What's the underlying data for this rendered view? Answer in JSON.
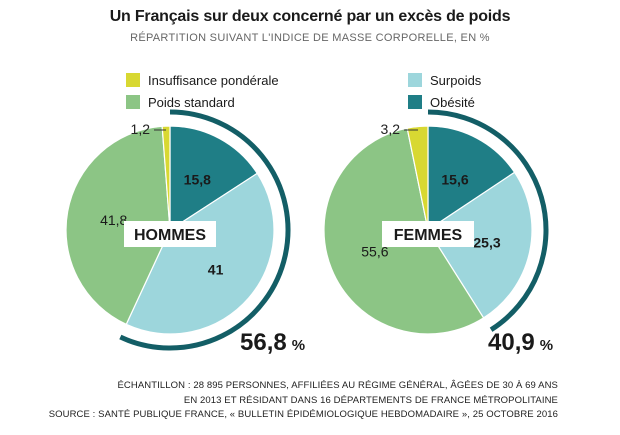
{
  "title": "Un Français sur deux concerné par un excès de poids",
  "subtitle": "RÉPARTITION SUIVANT L'INDICE DE MASSE CORPORELLE, EN %",
  "legend": [
    {
      "label": "Insuffisance pondérale",
      "color": "#d8d832"
    },
    {
      "label": "Poids standard",
      "color": "#8cc585"
    },
    {
      "label": "Surpoids",
      "color": "#9dd6dc"
    },
    {
      "label": "Obésité",
      "color": "#1f7e86"
    }
  ],
  "colors": {
    "arc": "#135e66",
    "badge_bg": "#ffffff"
  },
  "chart_data": [
    {
      "type": "pie",
      "name": "HOMMES",
      "slices": [
        {
          "category": "Obésité",
          "value": 15.8,
          "label": "15,8"
        },
        {
          "category": "Surpoids",
          "value": 41,
          "label": "41"
        },
        {
          "category": "Poids standard",
          "value": 41.8,
          "label": "41,8"
        },
        {
          "category": "Insuffisance pondérale",
          "value": 1.2,
          "label": "1,2"
        }
      ],
      "total_excess": {
        "value": 56.8,
        "label": "56,8",
        "unit": "%"
      }
    },
    {
      "type": "pie",
      "name": "FEMMES",
      "slices": [
        {
          "category": "Obésité",
          "value": 15.6,
          "label": "15,6"
        },
        {
          "category": "Surpoids",
          "value": 25.3,
          "label": "25,3"
        },
        {
          "category": "Poids standard",
          "value": 55.6,
          "label": "55,6"
        },
        {
          "category": "Insuffisance pondérale",
          "value": 3.2,
          "label": "3,2"
        }
      ],
      "total_excess": {
        "value": 40.9,
        "label": "40,9",
        "unit": "%"
      }
    }
  ],
  "footer": {
    "line1": "ÉCHANTILLON : 28 895 PERSONNES, AFFILIÉES AU RÉGIME GÉNÉRAL, ÂGÉES DE 30 À 69 ANS",
    "line2": "EN 2013 ET RÉSIDANT DANS 16 DÉPARTEMENTS DE FRANCE MÉTROPOLITAINE",
    "line3": "SOURCE :  SANTÉ PUBLIQUE FRANCE, « BULLETIN ÉPIDÉMIOLOGIQUE HEBDOMADAIRE », 25 OCTOBRE 2016"
  }
}
